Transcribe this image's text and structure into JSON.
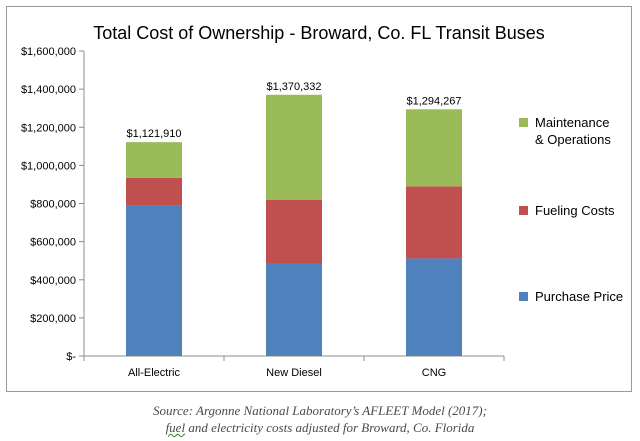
{
  "chart_data": {
    "type": "bar",
    "stacked": true,
    "title": "Total Cost of Ownership - Broward, Co. FL Transit Buses",
    "categories": [
      "All-Electric",
      "New Diesel",
      "CNG"
    ],
    "series": [
      {
        "name": "Purchase Price",
        "color": "#4f81bd",
        "values": [
          790000,
          485000,
          512000
        ]
      },
      {
        "name": "Fueling Costs",
        "color": "#c0504d",
        "values": [
          145000,
          335000,
          378000
        ]
      },
      {
        "name": "Maintenance & Operations",
        "color": "#9bbb59",
        "values": [
          186910,
          550332,
          404267
        ]
      }
    ],
    "totals": [
      1121910,
      1370332,
      1294267
    ],
    "total_labels": [
      "$1,121,910",
      "$1,370,332",
      "$1,294,267"
    ],
    "ylim": [
      0,
      1600000
    ],
    "yticks": [
      0,
      200000,
      400000,
      600000,
      800000,
      1000000,
      1200000,
      1400000,
      1600000
    ],
    "ytick_labels": [
      "$-",
      "$200,000",
      "$400,000",
      "$600,000",
      "$800,000",
      "$1,000,000",
      "$1,200,000",
      "$1,400,000",
      "$1,600,000"
    ],
    "legend": {
      "placement": "right",
      "entries": [
        {
          "lines": [
            "Maintenance",
            "& Operations"
          ],
          "color": "#9bbb59"
        },
        {
          "lines": [
            "Fueling Costs"
          ],
          "color": "#c0504d"
        },
        {
          "lines": [
            "Purchase Price"
          ],
          "color": "#4f81bd"
        }
      ]
    },
    "xlabel": "",
    "ylabel": "",
    "grid": false
  },
  "source": {
    "line1": "Source: Argonne National Laboratory’s AFLEET Model (2017);",
    "line2_word1": "fuel",
    "line2_rest": " and electricity  costs adjusted for Broward, Co. Florida"
  }
}
